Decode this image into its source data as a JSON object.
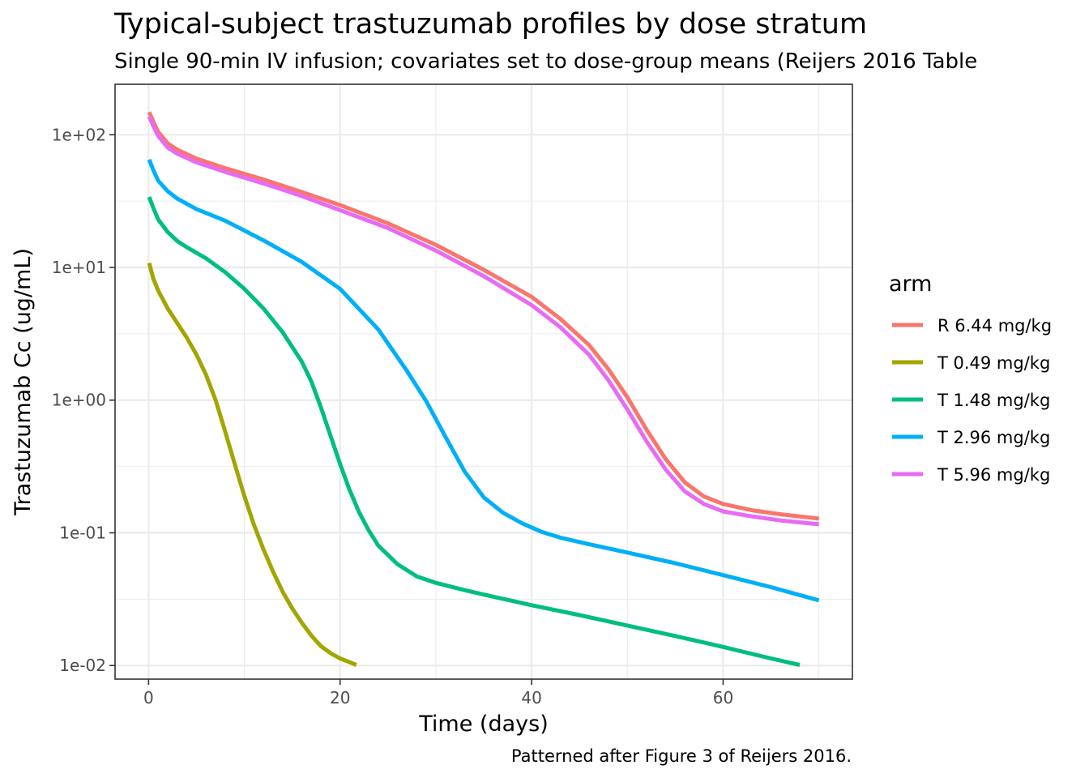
{
  "chart_data": {
    "type": "line",
    "title": "Typical-subject trastuzumab profiles by dose stratum",
    "subtitle": "Single 90-min IV infusion; covariates set to dose-group means (Reijers 2016 Table",
    "caption": "Patterned after Figure 3 of Reijers 2016.",
    "xlabel": "Time (days)",
    "ylabel": "Trastuzumab Cc (ug/mL)",
    "xlim": [
      -3.5,
      73.5
    ],
    "ylim": [
      0.0079,
      240
    ],
    "yscale": "log10",
    "grid": true,
    "x_ticks": [
      0,
      20,
      40,
      60
    ],
    "x_tick_labels": [
      "0",
      "20",
      "40",
      "60"
    ],
    "y_ticks": [
      0.01,
      0.1,
      1,
      10,
      100
    ],
    "y_tick_labels": [
      "1e-02",
      "1e-01",
      "1e+00",
      "1e+01",
      "1e+02"
    ],
    "legend": {
      "title": "arm",
      "position": "right"
    },
    "series": [
      {
        "name": "R 6.44 mg/kg",
        "color": "#F8766D",
        "x": [
          0.06,
          0.5,
          1,
          2,
          3,
          5,
          8,
          12,
          16,
          20,
          25,
          30,
          35,
          40,
          43,
          46,
          48,
          50,
          52,
          54,
          56,
          58,
          60,
          63,
          66,
          70
        ],
        "y": [
          148,
          125,
          105,
          86,
          77,
          66,
          56,
          46,
          37,
          29.5,
          21.5,
          14.8,
          9.6,
          6.0,
          4.1,
          2.6,
          1.72,
          1.05,
          0.6,
          0.36,
          0.24,
          0.188,
          0.165,
          0.148,
          0.138,
          0.128
        ]
      },
      {
        "name": "T 0.49 mg/kg",
        "color": "#A3A500",
        "x": [
          0.06,
          0.5,
          1,
          2,
          3,
          4,
          5,
          6,
          7,
          8,
          9,
          10,
          11,
          12,
          13,
          14,
          15,
          16,
          17,
          18,
          19,
          20,
          21,
          21.7
        ],
        "y": [
          10.8,
          8.2,
          6.7,
          4.9,
          3.8,
          2.95,
          2.2,
          1.55,
          1.0,
          0.58,
          0.33,
          0.19,
          0.115,
          0.075,
          0.051,
          0.036,
          0.027,
          0.021,
          0.0168,
          0.014,
          0.0124,
          0.0113,
          0.0106,
          0.0101
        ]
      },
      {
        "name": "T 1.48 mg/kg",
        "color": "#00BF7D",
        "x": [
          0.06,
          0.5,
          1,
          2,
          3,
          4,
          6,
          8,
          10,
          12,
          14,
          16,
          17,
          18,
          19,
          20,
          21,
          22,
          23,
          24,
          26,
          28,
          30,
          33,
          36,
          40,
          45,
          50,
          55,
          60,
          65,
          68
        ],
        "y": [
          34,
          28,
          23,
          18.5,
          15.8,
          14.2,
          11.7,
          9.2,
          6.9,
          4.9,
          3.25,
          1.95,
          1.38,
          0.88,
          0.54,
          0.33,
          0.21,
          0.142,
          0.104,
          0.08,
          0.058,
          0.047,
          0.042,
          0.037,
          0.033,
          0.0285,
          0.024,
          0.02,
          0.0167,
          0.0138,
          0.0113,
          0.0101
        ]
      },
      {
        "name": "T 2.96 mg/kg",
        "color": "#00B0F6",
        "x": [
          0.06,
          0.5,
          1,
          2,
          3,
          5,
          8,
          12,
          16,
          20,
          24,
          27,
          29,
          31,
          33,
          35,
          37,
          39,
          41,
          43,
          46,
          50,
          55,
          60,
          65,
          70
        ],
        "y": [
          65,
          54,
          45,
          37.5,
          33,
          27.5,
          22.5,
          16,
          11,
          6.9,
          3.4,
          1.65,
          0.98,
          0.53,
          0.29,
          0.185,
          0.142,
          0.118,
          0.102,
          0.092,
          0.082,
          0.071,
          0.059,
          0.048,
          0.039,
          0.031
        ]
      },
      {
        "name": "T 5.96 mg/kg",
        "color": "#E76BF3",
        "x": [
          0.06,
          0.5,
          1,
          2,
          3,
          5,
          8,
          12,
          16,
          20,
          25,
          30,
          35,
          40,
          43,
          46,
          48,
          50,
          52,
          54,
          56,
          58,
          60,
          63,
          66,
          70
        ],
        "y": [
          137,
          116,
          98,
          80,
          72,
          62,
          52.5,
          43,
          34.5,
          27,
          19.8,
          13.4,
          8.6,
          5.2,
          3.55,
          2.2,
          1.42,
          0.85,
          0.49,
          0.3,
          0.205,
          0.165,
          0.145,
          0.133,
          0.124,
          0.116
        ]
      }
    ]
  }
}
